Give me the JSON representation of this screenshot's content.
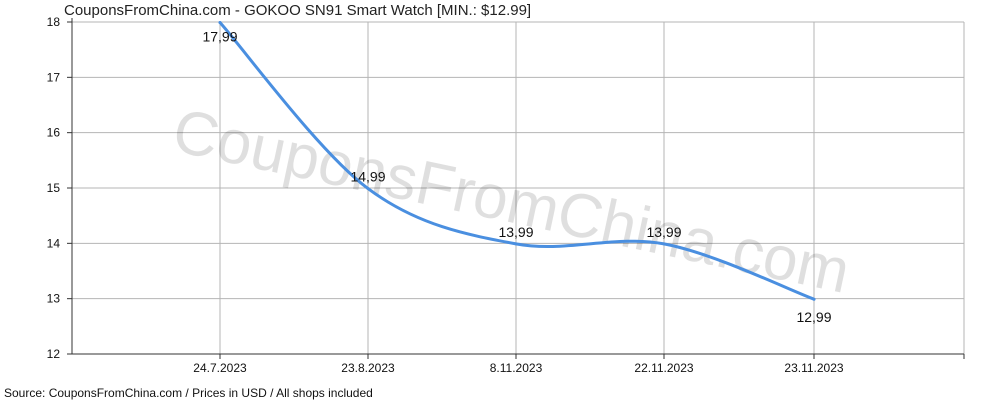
{
  "chart_data": {
    "type": "line",
    "title": "CouponsFromChina.com - GOKOO SN91 Smart Watch [MIN.: $12.99]",
    "categories": [
      "24.7.2023",
      "23.8.2023",
      "8.11.2023",
      "22.11.2023",
      "23.11.2023"
    ],
    "values": [
      17.99,
      14.99,
      13.99,
      13.99,
      12.99
    ],
    "data_labels": [
      "17,99",
      "14,99",
      "13,99",
      "13,99",
      "12,99"
    ],
    "ylim": [
      12,
      18
    ],
    "yticks": [
      12,
      13,
      14,
      15,
      16,
      17,
      18
    ],
    "grid": true,
    "line_color": "#4a8fe0",
    "grid_color": "#b4b4b4",
    "watermark": "CouponsFromChina.com",
    "footer": "Source:  CouponsFromChina.com / Prices in USD / All shops included"
  }
}
